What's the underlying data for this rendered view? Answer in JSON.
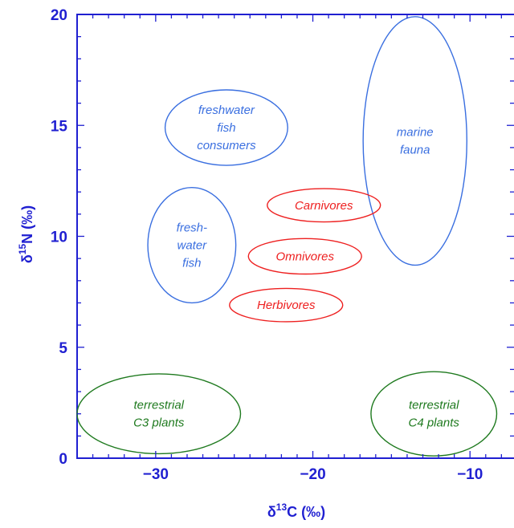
{
  "chart_data": {
    "type": "scatter",
    "title": "",
    "xlabel": {
      "prefix": "δ",
      "sup": "13",
      "rest": "C (‰)"
    },
    "ylabel": {
      "prefix": "δ",
      "sup": "15",
      "rest": "N (‰)"
    },
    "xlim": [
      -35,
      -7.2
    ],
    "ylim": [
      0,
      20
    ],
    "xticks": [
      -30,
      -20,
      -10
    ],
    "yticks": [
      0,
      5,
      10,
      15,
      20
    ],
    "x_tick_labels": [
      "−30",
      "−20",
      "−10"
    ],
    "y_tick_labels": [
      "0",
      "5",
      "10",
      "15",
      "20"
    ],
    "grid": false,
    "axis_color": "#1f1fd1",
    "regions": [
      {
        "name": "freshwater-fish-consumers",
        "label_lines": [
          "freshwater",
          "fish",
          "consumers"
        ],
        "cx": -25.5,
        "cy": 14.9,
        "rx": 3.9,
        "ry": 1.7,
        "color": "#3a6fe0"
      },
      {
        "name": "marine-fauna",
        "label_lines": [
          "marine",
          "fauna"
        ],
        "cx": -13.5,
        "cy": 14.3,
        "rx": 3.3,
        "ry": 5.6,
        "color": "#3a6fe0"
      },
      {
        "name": "freshwater-fish",
        "label_lines": [
          "fresh-",
          "water",
          "fish"
        ],
        "cx": -27.7,
        "cy": 9.6,
        "rx": 2.8,
        "ry": 2.6,
        "color": "#3a6fe0"
      },
      {
        "name": "carnivores",
        "label_lines": [
          "Carnivores"
        ],
        "cx": -19.3,
        "cy": 11.4,
        "rx": 3.6,
        "ry": 0.75,
        "color": "#ee2020"
      },
      {
        "name": "omnivores",
        "label_lines": [
          "Omnivores"
        ],
        "cx": -20.5,
        "cy": 9.1,
        "rx": 3.6,
        "ry": 0.8,
        "color": "#ee2020"
      },
      {
        "name": "herbivores",
        "label_lines": [
          "Herbivores"
        ],
        "cx": -21.7,
        "cy": 6.9,
        "rx": 3.6,
        "ry": 0.75,
        "color": "#ee2020"
      },
      {
        "name": "terrestrial-c3-plants",
        "label_lines": [
          "terrestrial",
          "C3 plants"
        ],
        "cx": -29.8,
        "cy": 2.0,
        "rx": 5.2,
        "ry": 1.8,
        "color": "#1f7a1f"
      },
      {
        "name": "terrestrial-c4-plants",
        "label_lines": [
          "terrestrial",
          "C4 plants"
        ],
        "cx": -12.3,
        "cy": 2.0,
        "rx": 4.0,
        "ry": 1.9,
        "color": "#1f7a1f"
      }
    ]
  }
}
